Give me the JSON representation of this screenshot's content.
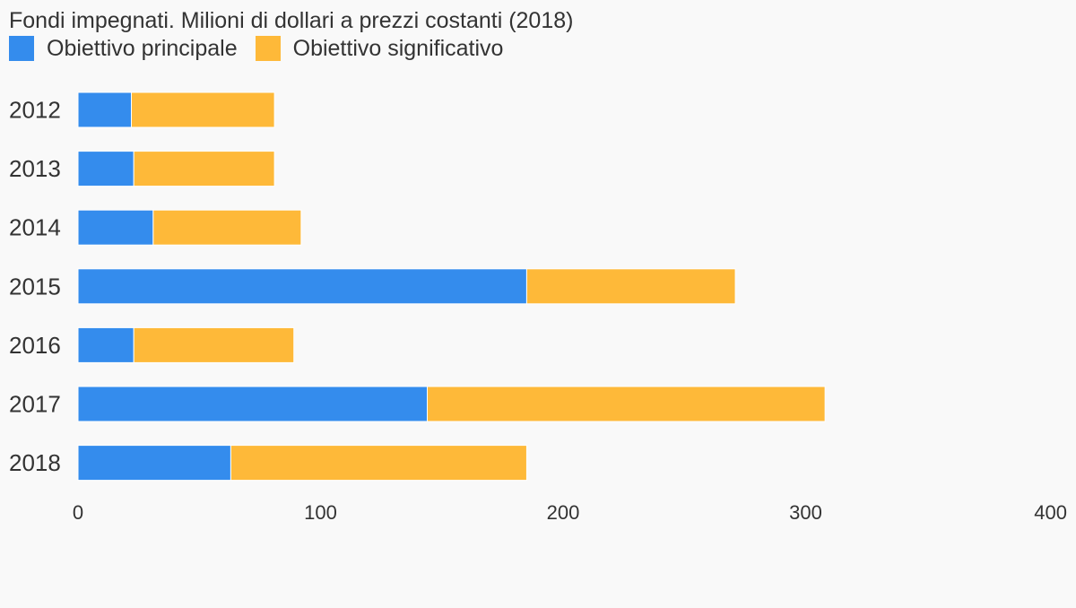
{
  "chart_data": {
    "type": "bar",
    "orientation": "horizontal",
    "stacked": true,
    "title": "Fondi impegnati. Milioni di dollari a prezzi costanti (2018)",
    "categories": [
      "2012",
      "2013",
      "2014",
      "2015",
      "2016",
      "2017",
      "2018"
    ],
    "series": [
      {
        "name": "Obiettivo principale",
        "color": "#348ced",
        "values": [
          22,
          23,
          31,
          185,
          23,
          144,
          63
        ]
      },
      {
        "name": "Obiettivo significativo",
        "color": "#feb939",
        "values": [
          59,
          58,
          61,
          86,
          66,
          164,
          122
        ]
      }
    ],
    "xlim": [
      0,
      400
    ],
    "xticks": [
      "0",
      "100",
      "200",
      "300",
      "400"
    ],
    "xlabel": "",
    "ylabel": "",
    "grid": false,
    "legend_position": "top-left"
  }
}
